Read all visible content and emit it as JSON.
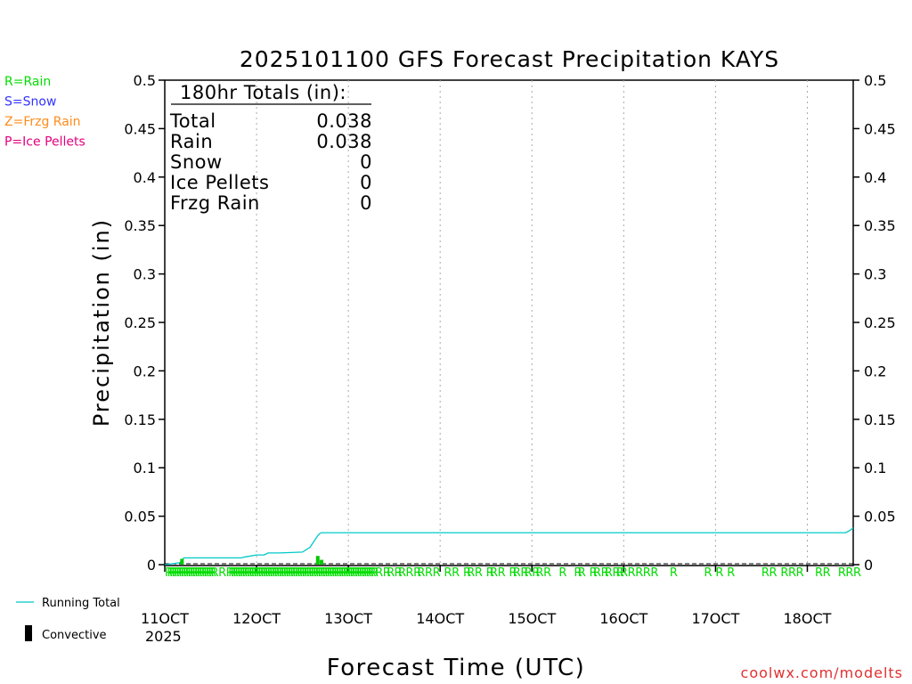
{
  "chart_data": {
    "type": "line",
    "title": "2025101100 GFS Forecast Precipitation KAYS",
    "xlabel": "Forecast Time (UTC)",
    "ylabel": "Precipitation (in)",
    "ylim": [
      0,
      0.5
    ],
    "xlim_hours": [
      0,
      180
    ],
    "y_ticks": [
      "0",
      "0.05",
      "0.1",
      "0.15",
      "0.2",
      "0.25",
      "0.3",
      "0.35",
      "0.4",
      "0.45",
      "0.5"
    ],
    "x_ticks": [
      {
        "label": "11OCT",
        "hour": 0
      },
      {
        "label": "12OCT",
        "hour": 24
      },
      {
        "label": "13OCT",
        "hour": 48
      },
      {
        "label": "14OCT",
        "hour": 72
      },
      {
        "label": "15OCT",
        "hour": 96
      },
      {
        "label": "16OCT",
        "hour": 120
      },
      {
        "label": "17OCT",
        "hour": 144
      },
      {
        "label": "18OCT",
        "hour": 168
      }
    ],
    "year_label": "2025",
    "grid": "vertical dotted",
    "series": [
      {
        "name": "Running Total",
        "color": "#00c8c8",
        "x": [
          0,
          4,
          4.5,
          5,
          20,
          21,
          24,
          26,
          27,
          30,
          36,
          38,
          39,
          40,
          40.5,
          41,
          42,
          100,
          177,
          178,
          178.5,
          179,
          180
        ],
        "y": [
          0,
          0.002,
          0.005,
          0.007,
          0.007,
          0.008,
          0.01,
          0.01,
          0.012,
          0.012,
          0.013,
          0.018,
          0.024,
          0.03,
          0.032,
          0.033,
          0.033,
          0.033,
          0.033,
          0.033,
          0.034,
          0.035,
          0.038
        ]
      },
      {
        "name": "Convective",
        "type": "bar",
        "color": "#00c800",
        "x": [
          4.5,
          40,
          41
        ],
        "y": [
          0.006,
          0.009,
          0.005
        ]
      }
    ],
    "precip_type_hours": [
      0,
      0.6,
      1.2,
      1.8,
      2.4,
      3,
      3.6,
      4.2,
      4.8,
      5.4,
      6,
      6.6,
      7.2,
      7.8,
      8.4,
      9,
      9.6,
      10.2,
      10.8,
      11.4,
      12,
      14,
      16,
      16.6,
      17.2,
      17.8,
      18.4,
      19,
      19.6,
      20.2,
      20.8,
      21.4,
      22,
      22.6,
      23.2,
      23.8,
      24.4,
      25,
      25.6,
      26.2,
      26.8,
      27.4,
      28,
      28.6,
      29.2,
      29.8,
      30.4,
      31,
      31.6,
      32.2,
      32.8,
      33.4,
      34,
      34.6,
      35.2,
      35.8,
      36.4,
      37,
      37.6,
      38.2,
      38.8,
      39.4,
      40,
      40.6,
      41.2,
      41.8,
      42.4,
      43,
      43.6,
      44.2,
      44.8,
      45.4,
      46,
      46.6,
      47.2,
      47.8,
      48.4,
      49,
      49.6,
      50.2,
      50.8,
      51.4,
      52,
      52.6,
      53.2,
      53.8,
      55,
      57,
      58,
      60,
      61,
      63,
      65,
      66,
      68,
      70,
      73,
      75,
      78,
      79,
      81,
      84,
      85,
      87,
      90,
      91,
      93,
      94,
      96,
      97,
      99,
      103,
      107,
      108,
      111,
      112,
      114,
      115,
      117,
      118,
      119,
      121,
      123,
      125,
      127,
      132,
      141,
      144,
      147,
      156,
      158,
      161,
      163,
      165,
      170,
      172,
      176,
      178,
      180
    ],
    "precip_type_label": "R",
    "legend_types": [
      {
        "text": "R=Rain",
        "color": "#00dd00"
      },
      {
        "text": "S=Snow",
        "color": "#3333ff"
      },
      {
        "text": "Z=Frzg Rain",
        "color": "#ff8c1a"
      },
      {
        "text": "P=Ice Pellets",
        "color": "#e6007e"
      }
    ],
    "legend_series": [
      {
        "text": "Running Total",
        "kind": "line",
        "color": "#00c8c8"
      },
      {
        "text": "Convective",
        "kind": "bar",
        "color": "#000000"
      }
    ],
    "totals": {
      "header": "180hr Totals (in):",
      "rows": [
        {
          "label": "Total",
          "value": "0.038"
        },
        {
          "label": "Rain",
          "value": "0.038"
        },
        {
          "label": "Snow",
          "value": "0"
        },
        {
          "label": "Ice Pellets",
          "value": "0"
        },
        {
          "label": "Frzg Rain",
          "value": "0"
        }
      ]
    },
    "credit": "coolwx.com/modelts"
  }
}
